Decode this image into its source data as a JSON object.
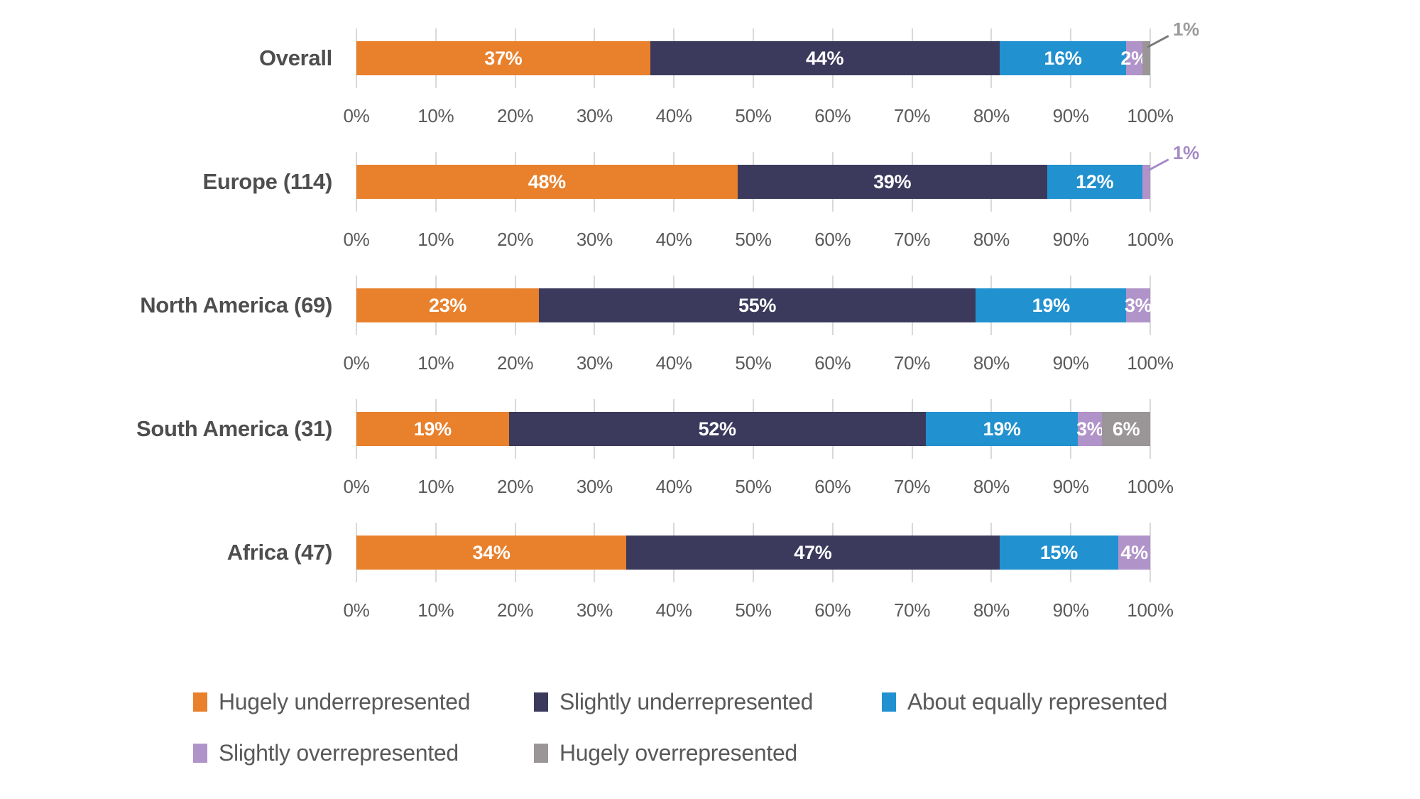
{
  "colors": {
    "background": "#ffffff",
    "gridline": "#D9D9D9",
    "category_text": "#4E4E4E",
    "axis_text": "#5A5A5A",
    "legend_text": "#595959",
    "bar_value_text": "#ffffff"
  },
  "chart_data": {
    "type": "bar",
    "variant": "horizontal-stacked",
    "title": "",
    "categories": [
      "Overall",
      "Europe (114)",
      "North America (69)",
      "South America (31)",
      "Africa (47)"
    ],
    "series": [
      {
        "name": "Hugely underrepresented",
        "color": "#E8802C",
        "values": [
          37,
          48,
          23,
          19,
          34
        ]
      },
      {
        "name": "Slightly underrepresented",
        "color": "#3B3A5C",
        "values": [
          44,
          39,
          55,
          52,
          47
        ]
      },
      {
        "name": "About equally represented",
        "color": "#2191D0",
        "values": [
          16,
          12,
          19,
          19,
          15
        ]
      },
      {
        "name": "Slightly overrepresented",
        "color": "#B093C9",
        "values": [
          2,
          1,
          3,
          3,
          4
        ]
      },
      {
        "name": "Hugely overrepresented",
        "color": "#9A9596",
        "values": [
          1,
          0,
          0,
          6,
          0
        ]
      }
    ],
    "axis_tick_labels": [
      "0%",
      "10%",
      "20%",
      "30%",
      "40%",
      "50%",
      "60%",
      "70%",
      "80%",
      "90%",
      "100%"
    ],
    "xlim": [
      0,
      100
    ],
    "grid": true,
    "value_suffix": "%",
    "min_inline_label_value": 2,
    "annotations": [
      {
        "row_index": 0,
        "series_index": 4,
        "text": "1%",
        "text_color": "#9B9B9B",
        "line_color": "#7A7A7A"
      },
      {
        "row_index": 1,
        "series_index": 3,
        "text": "1%",
        "text_color": "#A58BC6",
        "line_color": "#A58BC6"
      }
    ],
    "legend": {
      "position": "bottom-left",
      "rows": [
        [
          "Hugely underrepresented",
          "Slightly underrepresented",
          "About equally represented"
        ],
        [
          "Slightly overrepresented",
          "Hugely overrepresented"
        ]
      ]
    }
  }
}
